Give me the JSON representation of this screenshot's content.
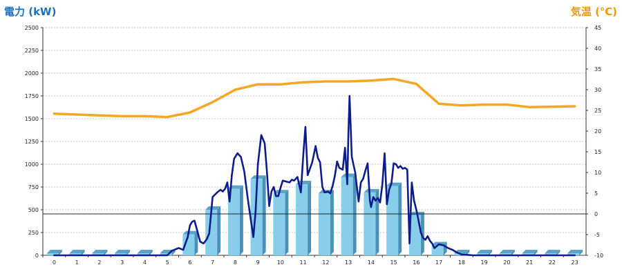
{
  "chart_data": {
    "type": "bar",
    "left_axis_title": "電力 (kW)",
    "right_axis_title": "気温 (℃)",
    "categories": [
      "0",
      "1",
      "2",
      "3",
      "4",
      "5",
      "6",
      "7",
      "8",
      "9",
      "10",
      "11",
      "12",
      "13",
      "14",
      "15",
      "16",
      "17",
      "18",
      "19",
      "20",
      "21",
      "22",
      "23"
    ],
    "y_left": {
      "min": 0,
      "max": 2500,
      "ticks": [
        0,
        250,
        500,
        750,
        1000,
        1250,
        1500,
        1750,
        2000,
        2250,
        2500
      ]
    },
    "y_right": {
      "min": -10,
      "max": 45,
      "ticks": [
        -10,
        -5,
        0,
        5,
        10,
        15,
        20,
        25,
        30,
        35,
        40,
        45
      ]
    },
    "grid": true,
    "reference_line_right": 0,
    "bars": {
      "axis": "left",
      "values": [
        0,
        0,
        0,
        0,
        0,
        0,
        230,
        500,
        730,
        840,
        680,
        780,
        680,
        860,
        690,
        760,
        440,
        110,
        0,
        0,
        0,
        0,
        0,
        0
      ]
    },
    "temperature": {
      "axis": "right",
      "x": [
        0,
        1,
        2,
        3,
        4,
        5,
        6,
        7,
        8,
        9,
        10,
        11,
        12,
        13,
        14,
        15,
        16,
        17,
        18,
        19,
        20,
        21,
        22,
        23
      ],
      "values": [
        24.2,
        24,
        23.8,
        23.6,
        23.6,
        23.4,
        24.5,
        27,
        30,
        31.3,
        31.3,
        31.8,
        32,
        32,
        32.2,
        32.6,
        31.4,
        26.6,
        26.2,
        26.4,
        26.4,
        25.8,
        25.9,
        26
      ]
    },
    "power_detail": {
      "axis": "left",
      "x": [
        0,
        1,
        2,
        3,
        4,
        5,
        5.2,
        5.5,
        5.7,
        5.9,
        6,
        6.1,
        6.2,
        6.3,
        6.45,
        6.6,
        6.75,
        6.85,
        7,
        7.2,
        7.35,
        7.45,
        7.55,
        7.65,
        7.75,
        7.85,
        7.95,
        8.1,
        8.25,
        8.4,
        8.55,
        8.7,
        8.8,
        8.9,
        9,
        9.15,
        9.3,
        9.4,
        9.5,
        9.6,
        9.7,
        9.8,
        9.9,
        10,
        10.1,
        10.25,
        10.4,
        10.5,
        10.6,
        10.75,
        10.9,
        11,
        11.1,
        11.2,
        11.3,
        11.4,
        11.55,
        11.65,
        11.75,
        11.85,
        11.95,
        12.1,
        12.2,
        12.3,
        12.4,
        12.5,
        12.6,
        12.75,
        12.85,
        12.95,
        13,
        13.05,
        13.15,
        13.3,
        13.45,
        13.55,
        13.65,
        13.75,
        13.85,
        13.95,
        14,
        14.1,
        14.2,
        14.3,
        14.4,
        14.5,
        14.6,
        14.7,
        14.8,
        14.9,
        15,
        15.1,
        15.2,
        15.3,
        15.4,
        15.5,
        15.6,
        15.7,
        15.8,
        15.9,
        16,
        16.1,
        16.2,
        16.3,
        16.4,
        16.5,
        16.6,
        16.7,
        16.8,
        16.9,
        17,
        17.2,
        17.4,
        17.6,
        17.8,
        18,
        18.5,
        19,
        20,
        21,
        22,
        23
      ],
      "values": [
        0,
        0,
        0,
        0,
        0,
        0,
        50,
        80,
        60,
        200,
        330,
        370,
        380,
        290,
        150,
        130,
        180,
        240,
        640,
        690,
        720,
        700,
        730,
        800,
        590,
        880,
        1060,
        1120,
        1080,
        920,
        630,
        370,
        200,
        480,
        1000,
        1320,
        1230,
        920,
        540,
        700,
        750,
        650,
        650,
        740,
        820,
        810,
        800,
        830,
        820,
        860,
        690,
        1080,
        1410,
        880,
        950,
        1020,
        1200,
        1070,
        1020,
        750,
        690,
        700,
        680,
        760,
        870,
        1030,
        960,
        940,
        1180,
        780,
        1340,
        1750,
        1080,
        910,
        590,
        800,
        840,
        930,
        1010,
        600,
        530,
        640,
        600,
        630,
        580,
        780,
        1120,
        560,
        720,
        790,
        1010,
        1000,
        960,
        980,
        950,
        960,
        940,
        130,
        800,
        600,
        500,
        380,
        250,
        190,
        170,
        210,
        160,
        130,
        80,
        100,
        120,
        110,
        80,
        60,
        30,
        10,
        0,
        0,
        0,
        0,
        0,
        0
      ]
    },
    "colors": {
      "bar_front": "#87ceeb",
      "bar_side": "#4a90b8",
      "bar_top": "#5ba3c9",
      "temperature_line": "#f5a623",
      "power_line": "#0d1b8c",
      "left_title": "#1b6fc0",
      "right_title": "#f39800"
    }
  }
}
